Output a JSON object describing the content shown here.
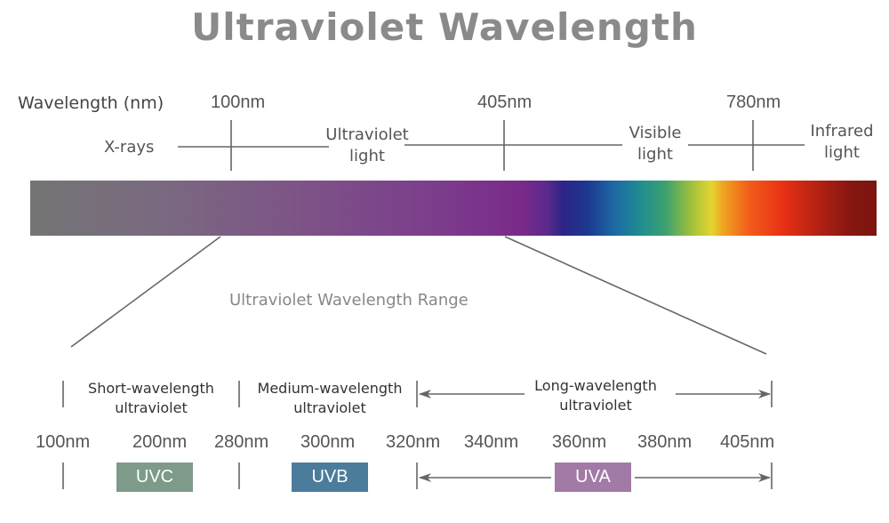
{
  "title": "Ultraviolet Wavelength",
  "axis_label": "Wavelength (nm)",
  "top_ticks": [
    "100nm",
    "405nm",
    "780nm"
  ],
  "regions": {
    "xrays": "X-rays",
    "uv_line1": "Ultraviolet",
    "uv_line2": "light",
    "visible_line1": "Visible",
    "visible_line2": "light",
    "infrared_line1": "Infrared",
    "infrared_line2": "light"
  },
  "range_title": "Ultraviolet Wavelength Range",
  "bands": {
    "short_line1": "Short-wavelength",
    "short_line2": "ultraviolet",
    "medium_line1": "Medium-wavelength",
    "medium_line2": "ultraviolet",
    "long_line1": "Long-wavelength",
    "long_line2": "ultraviolet"
  },
  "bottom_ticks": [
    "100nm",
    "200nm",
    "280nm",
    "300nm",
    "320nm",
    "340nm",
    "360nm",
    "380nm",
    "405nm"
  ],
  "boxes": {
    "uvc": "UVC",
    "uvb": "UVB",
    "uva": "UVA"
  },
  "colors": {
    "title": "#8a8a8a",
    "uvc": "#7d9a8a",
    "uvb": "#4c7c9c",
    "uva": "#a27aa6",
    "line": "#666666"
  }
}
